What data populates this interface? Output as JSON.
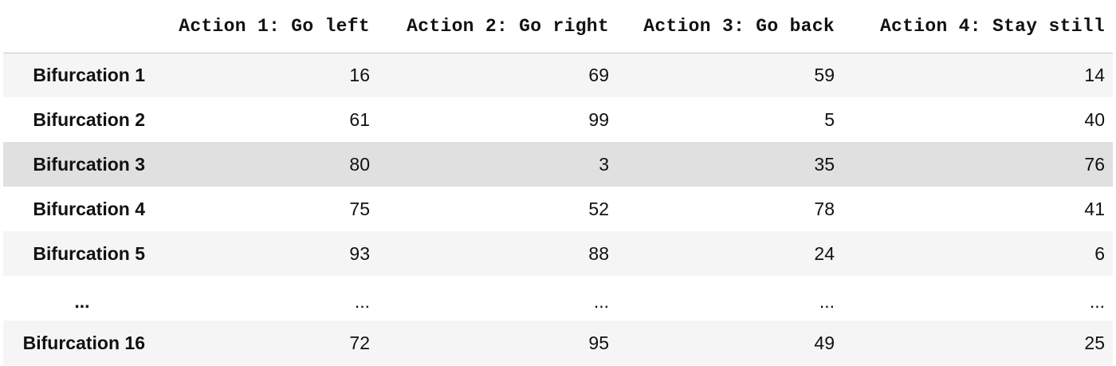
{
  "table": {
    "columns": [
      "",
      "Action 1: Go left",
      "Action 2: Go right",
      "Action 3: Go back",
      "Action 4: Stay still"
    ],
    "rows": [
      {
        "index": "Bifurcation 1",
        "values": [
          "16",
          "69",
          "59",
          "14"
        ]
      },
      {
        "index": "Bifurcation 2",
        "values": [
          "61",
          "99",
          "5",
          "40"
        ]
      },
      {
        "index": "Bifurcation 3",
        "values": [
          "80",
          "3",
          "35",
          "76"
        ],
        "highlighted": true
      },
      {
        "index": "Bifurcation 4",
        "values": [
          "75",
          "52",
          "78",
          "41"
        ]
      },
      {
        "index": "Bifurcation 5",
        "values": [
          "93",
          "88",
          "24",
          "6"
        ]
      },
      {
        "index": "...",
        "values": [
          "...",
          "...",
          "...",
          "..."
        ]
      },
      {
        "index": "Bifurcation 16",
        "values": [
          "72",
          "95",
          "49",
          "25"
        ]
      }
    ],
    "colors": {
      "stripe": "#f5f5f5",
      "highlight": "#e0e0e0",
      "text": "#111111"
    }
  }
}
